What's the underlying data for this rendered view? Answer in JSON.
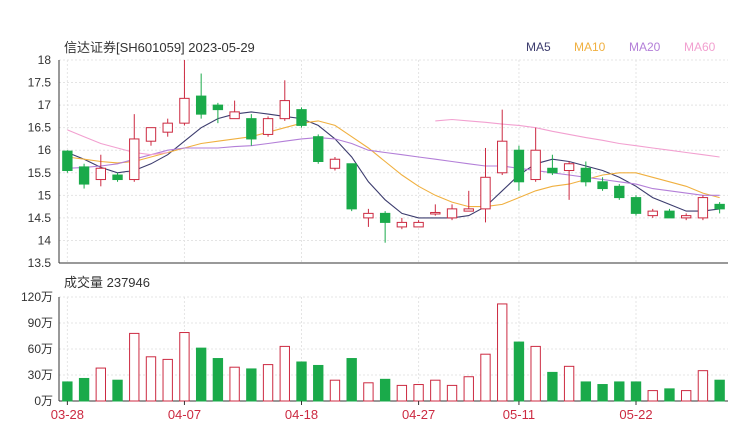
{
  "header": {
    "title": "信达证券[SH601059] 2023-05-29",
    "legend": [
      {
        "label": "MA5",
        "color": "#3c3c6e"
      },
      {
        "label": "MA10",
        "color": "#f0b040"
      },
      {
        "label": "MA20",
        "color": "#b37fd8"
      },
      {
        "label": "MA60",
        "color": "#f2a0d0"
      }
    ]
  },
  "volume_header": {
    "label": "成交量 237946"
  },
  "colors": {
    "up": "#cc2a41",
    "down": "#1aaa4a",
    "grid": "#e4e4e4",
    "axis": "#333333"
  },
  "chart_data": [
    {
      "type": "candlestick",
      "title": "信达证券[SH601059] 2023-05-29",
      "ylim": [
        13.5,
        18
      ],
      "y_ticks": [
        "13.5",
        "14",
        "14.5",
        "15",
        "15.5",
        "16",
        "16.5",
        "17",
        "17.5",
        "18"
      ],
      "x_labels": [
        "03-28",
        "04-07",
        "04-18",
        "04-27",
        "05-11",
        "05-22"
      ],
      "x_label_index": [
        0,
        7,
        14,
        21,
        27,
        34
      ],
      "candles": [
        {
          "o": 15.55,
          "c": 15.98,
          "h": 16.0,
          "l": 15.5,
          "dir": "down"
        },
        {
          "o": 15.63,
          "c": 15.25,
          "h": 15.7,
          "l": 15.15,
          "dir": "down"
        },
        {
          "o": 15.35,
          "c": 15.6,
          "h": 15.9,
          "l": 15.2,
          "dir": "up"
        },
        {
          "o": 15.45,
          "c": 15.35,
          "h": 15.5,
          "l": 15.3,
          "dir": "down"
        },
        {
          "o": 15.35,
          "c": 16.25,
          "h": 16.8,
          "l": 15.3,
          "dir": "up"
        },
        {
          "o": 16.2,
          "c": 16.5,
          "h": 16.5,
          "l": 16.1,
          "dir": "up"
        },
        {
          "o": 16.4,
          "c": 16.6,
          "h": 16.7,
          "l": 16.3,
          "dir": "up"
        },
        {
          "o": 16.6,
          "c": 17.15,
          "h": 18.0,
          "l": 16.55,
          "dir": "up"
        },
        {
          "o": 17.2,
          "c": 16.8,
          "h": 17.7,
          "l": 16.7,
          "dir": "down"
        },
        {
          "o": 17.0,
          "c": 16.9,
          "h": 17.05,
          "l": 16.6,
          "dir": "down"
        },
        {
          "o": 16.7,
          "c": 16.85,
          "h": 17.1,
          "l": 16.7,
          "dir": "up"
        },
        {
          "o": 16.7,
          "c": 16.25,
          "h": 16.8,
          "l": 16.1,
          "dir": "down"
        },
        {
          "o": 16.35,
          "c": 16.7,
          "h": 16.75,
          "l": 16.3,
          "dir": "up"
        },
        {
          "o": 16.7,
          "c": 17.1,
          "h": 17.55,
          "l": 16.65,
          "dir": "up"
        },
        {
          "o": 16.9,
          "c": 16.55,
          "h": 16.95,
          "l": 16.5,
          "dir": "down"
        },
        {
          "o": 16.3,
          "c": 15.75,
          "h": 16.35,
          "l": 15.7,
          "dir": "down"
        },
        {
          "o": 15.6,
          "c": 15.8,
          "h": 15.85,
          "l": 15.55,
          "dir": "up"
        },
        {
          "o": 15.7,
          "c": 14.7,
          "h": 15.7,
          "l": 14.65,
          "dir": "down"
        },
        {
          "o": 14.5,
          "c": 14.6,
          "h": 14.7,
          "l": 14.3,
          "dir": "up"
        },
        {
          "o": 14.6,
          "c": 14.4,
          "h": 14.65,
          "l": 13.95,
          "dir": "down"
        },
        {
          "o": 14.3,
          "c": 14.4,
          "h": 14.5,
          "l": 14.25,
          "dir": "up"
        },
        {
          "o": 14.3,
          "c": 14.4,
          "h": 14.45,
          "l": 14.3,
          "dir": "up"
        },
        {
          "o": 14.6,
          "c": 14.62,
          "h": 14.8,
          "l": 14.55,
          "dir": "up"
        },
        {
          "o": 14.5,
          "c": 14.7,
          "h": 14.8,
          "l": 14.45,
          "dir": "up"
        },
        {
          "o": 14.65,
          "c": 14.7,
          "h": 15.1,
          "l": 14.65,
          "dir": "up"
        },
        {
          "o": 14.7,
          "c": 15.4,
          "h": 16.05,
          "l": 14.4,
          "dir": "up"
        },
        {
          "o": 15.5,
          "c": 16.2,
          "h": 16.9,
          "l": 15.45,
          "dir": "up"
        },
        {
          "o": 16.0,
          "c": 15.3,
          "h": 16.1,
          "l": 15.1,
          "dir": "down"
        },
        {
          "o": 15.35,
          "c": 16.0,
          "h": 16.5,
          "l": 15.3,
          "dir": "up"
        },
        {
          "o": 15.6,
          "c": 15.5,
          "h": 15.9,
          "l": 15.45,
          "dir": "down"
        },
        {
          "o": 15.55,
          "c": 15.7,
          "h": 15.75,
          "l": 14.9,
          "dir": "up"
        },
        {
          "o": 15.6,
          "c": 15.3,
          "h": 15.75,
          "l": 15.2,
          "dir": "down"
        },
        {
          "o": 15.3,
          "c": 15.15,
          "h": 15.4,
          "l": 15.1,
          "dir": "down"
        },
        {
          "o": 15.2,
          "c": 14.95,
          "h": 15.25,
          "l": 14.9,
          "dir": "down"
        },
        {
          "o": 14.95,
          "c": 14.6,
          "h": 15.0,
          "l": 14.55,
          "dir": "down"
        },
        {
          "o": 14.55,
          "c": 14.65,
          "h": 14.7,
          "l": 14.5,
          "dir": "up"
        },
        {
          "o": 14.65,
          "c": 14.5,
          "h": 14.7,
          "l": 14.5,
          "dir": "down"
        },
        {
          "o": 14.5,
          "c": 14.55,
          "h": 14.6,
          "l": 14.45,
          "dir": "up"
        },
        {
          "o": 14.5,
          "c": 14.95,
          "h": 15.0,
          "l": 14.45,
          "dir": "up"
        },
        {
          "o": 14.8,
          "c": 14.7,
          "h": 14.85,
          "l": 14.6,
          "dir": "down"
        }
      ],
      "ma": [
        {
          "name": "MA5",
          "color": "#3c3c6e",
          "values": [
            15.95,
            15.8,
            15.62,
            15.5,
            15.55,
            15.7,
            15.9,
            16.2,
            16.5,
            16.7,
            16.8,
            16.85,
            16.8,
            16.75,
            16.7,
            16.55,
            16.25,
            15.85,
            15.3,
            14.9,
            14.6,
            14.5,
            14.5,
            14.5,
            14.55,
            14.75,
            15.1,
            15.45,
            15.7,
            15.8,
            15.75,
            15.65,
            15.55,
            15.4,
            15.2,
            14.95,
            14.8,
            14.65,
            14.65,
            14.7
          ]
        },
        {
          "name": "MA10",
          "color": "#f0b040",
          "values": [
            15.85,
            15.8,
            15.75,
            15.72,
            15.75,
            15.85,
            15.95,
            16.05,
            16.15,
            16.2,
            16.25,
            16.3,
            16.4,
            16.5,
            16.6,
            16.65,
            16.55,
            16.3,
            16.05,
            15.75,
            15.45,
            15.2,
            15.0,
            14.85,
            14.75,
            14.75,
            14.8,
            14.95,
            15.1,
            15.2,
            15.25,
            15.35,
            15.45,
            15.5,
            15.5,
            15.4,
            15.3,
            15.2,
            15.05,
            14.95
          ]
        },
        {
          "name": "MA20",
          "color": "#b37fd8",
          "values": [
            15.6,
            15.62,
            15.65,
            15.7,
            15.8,
            15.9,
            16.0,
            16.05,
            16.05,
            16.05,
            16.08,
            16.1,
            16.15,
            16.2,
            16.25,
            16.28,
            16.25,
            16.15,
            16.0,
            15.95,
            15.9,
            15.85,
            15.8,
            15.75,
            15.7,
            15.65,
            15.65,
            15.6,
            15.55,
            15.5,
            15.45,
            15.4,
            15.35,
            15.3,
            15.25,
            15.15,
            15.1,
            15.05,
            15.0,
            15.0
          ]
        },
        {
          "name": "MA60",
          "color": "#f2a0d0",
          "values": [
            16.45,
            16.3,
            16.15,
            16.05,
            15.95,
            15.9,
            15.95,
            null,
            null,
            null,
            null,
            null,
            null,
            null,
            null,
            null,
            null,
            null,
            null,
            null,
            null,
            null,
            16.65,
            16.68,
            16.65,
            16.62,
            16.58,
            16.55,
            16.5,
            16.42,
            16.35,
            16.28,
            16.22,
            16.15,
            16.1,
            16.05,
            16.0,
            15.95,
            15.9,
            15.85
          ]
        }
      ]
    },
    {
      "type": "bar",
      "title": "成交量 237946",
      "unit": "万",
      "ylim": [
        0,
        120
      ],
      "y_ticks": [
        "0万",
        "30万",
        "60万",
        "90万",
        "120万"
      ],
      "values": [
        22,
        26,
        38,
        24,
        78,
        51,
        48,
        79,
        61,
        49,
        39,
        37,
        42,
        63,
        45,
        41,
        24,
        49,
        21,
        25,
        18,
        19,
        24,
        18,
        28,
        54,
        112,
        68,
        63,
        33,
        40,
        22,
        19,
        22,
        22,
        12,
        14,
        12,
        35,
        24
      ]
    }
  ]
}
